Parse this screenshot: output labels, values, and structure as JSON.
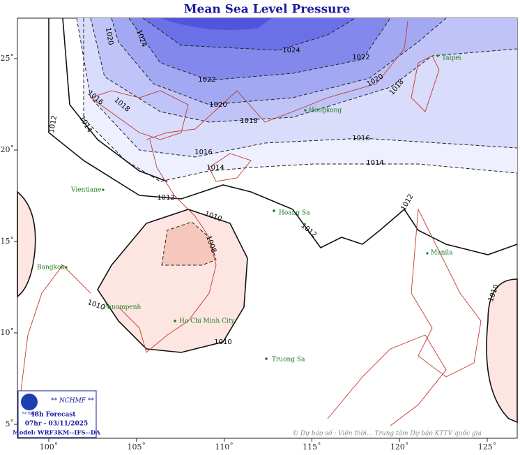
{
  "title": "Mean Sea Level Pressure",
  "lon_ticks": [
    {
      "value": 100,
      "label": "100˚"
    },
    {
      "value": 105,
      "label": "105˚"
    },
    {
      "value": 110,
      "label": "110˚"
    },
    {
      "value": 115,
      "label": "115˚"
    },
    {
      "value": 120,
      "label": "120˚"
    },
    {
      "value": 125,
      "label": "125˚"
    }
  ],
  "lat_ticks": [
    {
      "value": 25,
      "label": "25˚"
    },
    {
      "value": 20,
      "label": "20˚"
    },
    {
      "value": 15,
      "label": "15˚"
    },
    {
      "value": 10,
      "label": "10˚"
    },
    {
      "value": 5,
      "label": "5˚"
    }
  ],
  "isobar_labels": [
    "1024",
    "1020",
    "1024",
    "1022",
    "1022",
    "1020",
    "1018",
    "1016",
    "1018",
    "1020",
    "1012",
    "1014",
    "1018",
    "1016",
    "1016",
    "1014",
    "1014",
    "1012",
    "1012",
    "1010",
    "1012",
    "1008",
    "1010",
    "1010",
    "1010"
  ],
  "cities": [
    "Taipei",
    "Hongkong",
    "Vientiane",
    "Hoang Sa",
    "Manila",
    "Bangkok",
    "Phnompenh",
    "Ho Chi Minh City",
    "Truong Sa"
  ],
  "info": {
    "org": "** NCHMF **",
    "logo": "NCHMF",
    "forecast": "48h Forecast",
    "time": "07hr - 03/11/2025",
    "model": "Model: WRF3KM--IFS--DA"
  },
  "credit": "© Dự báo số - Viện thời... Trung tâm Dự báo KTTV quốc gia"
}
